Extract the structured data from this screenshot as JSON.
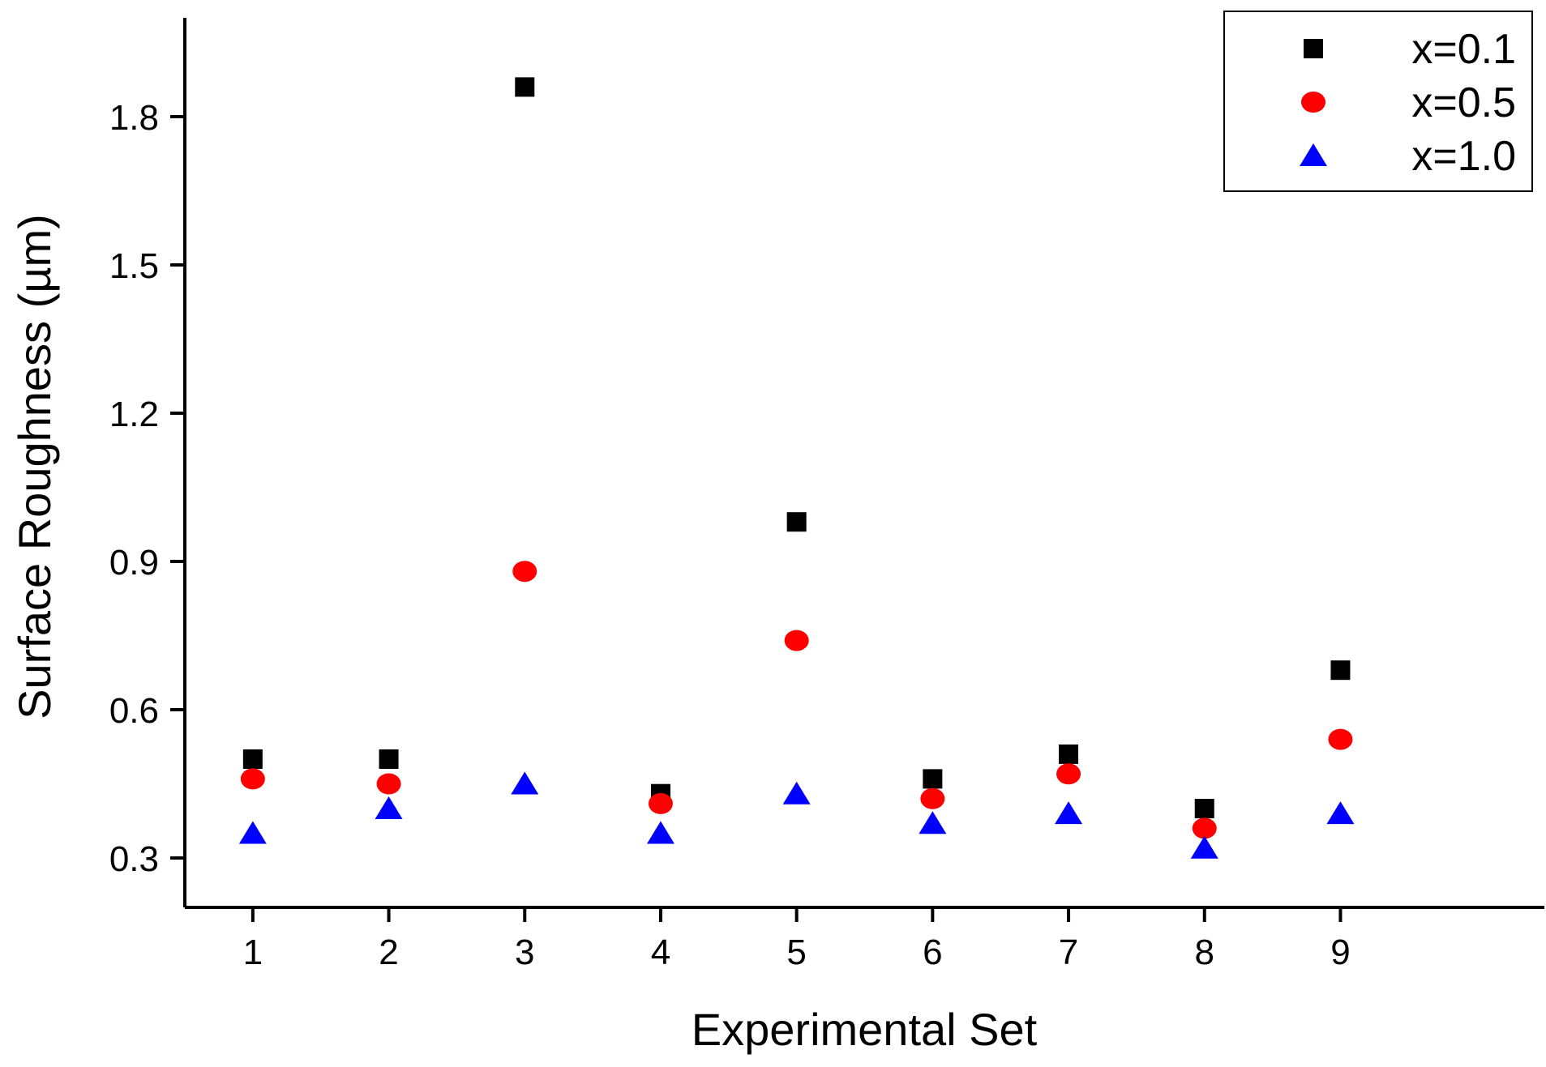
{
  "chart_data": {
    "type": "scatter",
    "title": "",
    "xlabel": "Experimental Set",
    "ylabel": "Surface Roughness (µm)",
    "x": [
      1,
      2,
      3,
      4,
      5,
      6,
      7,
      8,
      9
    ],
    "xlim": [
      0.5,
      10.5
    ],
    "ylim": [
      0.2,
      2.0
    ],
    "xticks": [
      1,
      2,
      3,
      4,
      5,
      6,
      7,
      8,
      9
    ],
    "yticks": [
      0.3,
      0.6,
      0.9,
      1.2,
      1.5,
      1.8
    ],
    "ytick_labels": [
      "0.3",
      "0.6",
      "0.9",
      "1.2",
      "1.5",
      "1.8"
    ],
    "grid": false,
    "legend_position": "top-right",
    "series": [
      {
        "name": "x=0.1",
        "marker": "square",
        "color": "#000000",
        "values": [
          0.5,
          0.5,
          1.86,
          0.43,
          0.98,
          0.46,
          0.51,
          0.4,
          0.68
        ]
      },
      {
        "name": "x=0.5",
        "marker": "circle",
        "color": "#ff0000",
        "values": [
          0.46,
          0.45,
          0.88,
          0.41,
          0.74,
          0.42,
          0.47,
          0.36,
          0.54
        ]
      },
      {
        "name": "x=1.0",
        "marker": "triangle",
        "color": "#0000ff",
        "values": [
          0.35,
          0.4,
          0.45,
          0.35,
          0.43,
          0.37,
          0.39,
          0.32,
          0.39
        ]
      }
    ]
  }
}
